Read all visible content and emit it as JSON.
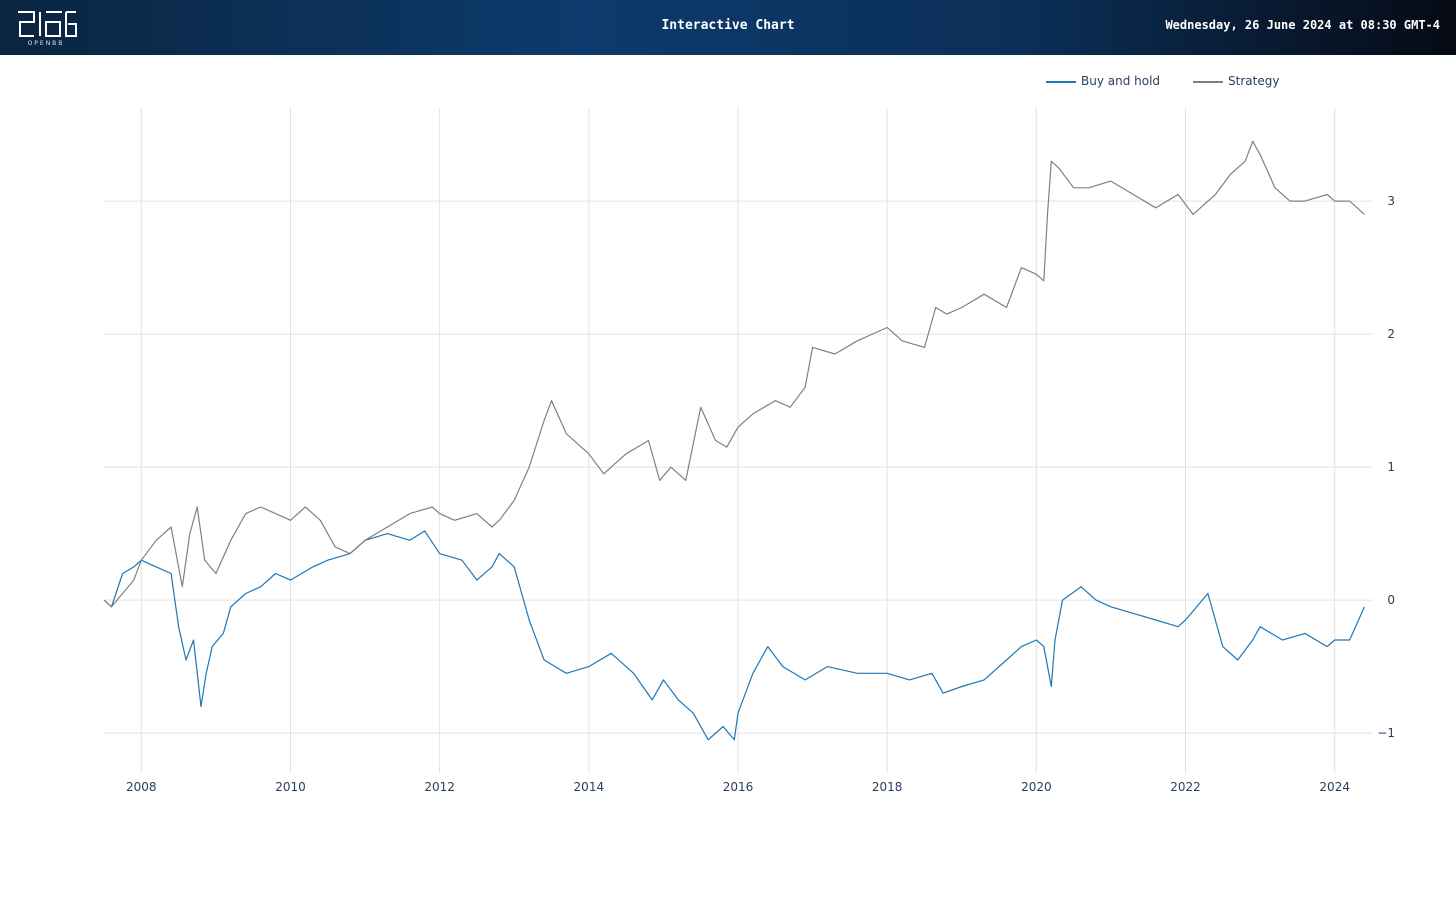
{
  "header": {
    "title": "Interactive Chart",
    "datetime": "Wednesday, 26 June 2024 at 08:30 GMT-4",
    "logo_caption": "OPENBB",
    "colors": {
      "from": "#0a2540",
      "mid": "#0d3a6c",
      "to": "#060a14"
    }
  },
  "legend": {
    "items": [
      {
        "label": "Buy and hold",
        "color": "#1f77b4"
      },
      {
        "label": "Strategy",
        "color": "#808080"
      }
    ]
  },
  "chart_data": {
    "type": "line",
    "x_range": [
      2007.5,
      2024.5
    ],
    "ylim": [
      -1.3,
      3.7
    ],
    "x_ticks": [
      2008,
      2010,
      2012,
      2014,
      2016,
      2018,
      2020,
      2022,
      2024
    ],
    "y_ticks": [
      -1,
      0,
      1,
      2,
      3
    ],
    "y_tick_labels": [
      "−1",
      "0",
      "1",
      "2",
      "3"
    ],
    "grid": true,
    "legend_position": "top-right",
    "series": [
      {
        "name": "Buy and hold",
        "color": "#1f77b4",
        "x": [
          2007.5,
          2007.6,
          2007.75,
          2007.9,
          2008.0,
          2008.2,
          2008.4,
          2008.5,
          2008.6,
          2008.7,
          2008.8,
          2008.87,
          2008.95,
          2009.1,
          2009.2,
          2009.4,
          2009.6,
          2009.8,
          2010.0,
          2010.3,
          2010.5,
          2010.8,
          2011.0,
          2011.3,
          2011.6,
          2011.8,
          2012.0,
          2012.3,
          2012.5,
          2012.7,
          2012.8,
          2013.0,
          2013.2,
          2013.4,
          2013.7,
          2014.0,
          2014.3,
          2014.6,
          2014.85,
          2015.0,
          2015.2,
          2015.4,
          2015.6,
          2015.8,
          2015.95,
          2016.0,
          2016.2,
          2016.4,
          2016.6,
          2016.9,
          2017.2,
          2017.6,
          2018.0,
          2018.3,
          2018.6,
          2018.75,
          2019.0,
          2019.3,
          2019.6,
          2019.8,
          2020.0,
          2020.1,
          2020.2,
          2020.25,
          2020.35,
          2020.6,
          2020.8,
          2021.0,
          2021.3,
          2021.6,
          2021.9,
          2022.0,
          2022.3,
          2022.5,
          2022.7,
          2022.9,
          2023.0,
          2023.3,
          2023.6,
          2023.9,
          2024.0,
          2024.2,
          2024.4
        ],
        "y": [
          0.0,
          -0.05,
          0.2,
          0.25,
          0.3,
          0.25,
          0.2,
          -0.2,
          -0.45,
          -0.3,
          -0.8,
          -0.55,
          -0.35,
          -0.25,
          -0.05,
          0.05,
          0.1,
          0.2,
          0.15,
          0.25,
          0.3,
          0.35,
          0.45,
          0.5,
          0.45,
          0.52,
          0.35,
          0.3,
          0.15,
          0.25,
          0.35,
          0.25,
          -0.15,
          -0.45,
          -0.55,
          -0.5,
          -0.4,
          -0.55,
          -0.75,
          -0.6,
          -0.75,
          -0.85,
          -1.05,
          -0.95,
          -1.05,
          -0.85,
          -0.55,
          -0.35,
          -0.5,
          -0.6,
          -0.5,
          -0.55,
          -0.55,
          -0.6,
          -0.55,
          -0.7,
          -0.65,
          -0.6,
          -0.45,
          -0.35,
          -0.3,
          -0.35,
          -0.65,
          -0.3,
          0.0,
          0.1,
          0.0,
          -0.05,
          -0.1,
          -0.15,
          -0.2,
          -0.15,
          0.05,
          -0.35,
          -0.45,
          -0.3,
          -0.2,
          -0.3,
          -0.25,
          -0.35,
          -0.3,
          -0.3,
          -0.05
        ]
      },
      {
        "name": "Strategy",
        "color": "#808080",
        "x": [
          2007.5,
          2007.6,
          2007.75,
          2007.9,
          2008.0,
          2008.2,
          2008.4,
          2008.55,
          2008.65,
          2008.75,
          2008.85,
          2009.0,
          2009.2,
          2009.4,
          2009.6,
          2009.8,
          2010.0,
          2010.2,
          2010.4,
          2010.6,
          2010.8,
          2011.0,
          2011.3,
          2011.6,
          2011.9,
          2012.0,
          2012.2,
          2012.5,
          2012.7,
          2012.8,
          2013.0,
          2013.2,
          2013.4,
          2013.5,
          2013.7,
          2014.0,
          2014.2,
          2014.5,
          2014.8,
          2014.95,
          2015.1,
          2015.3,
          2015.5,
          2015.7,
          2015.85,
          2016.0,
          2016.2,
          2016.5,
          2016.7,
          2016.9,
          2017.0,
          2017.3,
          2017.6,
          2018.0,
          2018.2,
          2018.5,
          2018.65,
          2018.8,
          2019.0,
          2019.3,
          2019.6,
          2019.8,
          2020.0,
          2020.1,
          2020.15,
          2020.2,
          2020.3,
          2020.5,
          2020.7,
          2021.0,
          2021.3,
          2021.6,
          2021.9,
          2022.1,
          2022.4,
          2022.6,
          2022.8,
          2022.9,
          2023.0,
          2023.2,
          2023.4,
          2023.6,
          2023.9,
          2024.0,
          2024.2,
          2024.4
        ],
        "y": [
          0.0,
          -0.05,
          0.05,
          0.15,
          0.3,
          0.45,
          0.55,
          0.1,
          0.5,
          0.7,
          0.3,
          0.2,
          0.45,
          0.65,
          0.7,
          0.65,
          0.6,
          0.7,
          0.6,
          0.4,
          0.35,
          0.45,
          0.55,
          0.65,
          0.7,
          0.65,
          0.6,
          0.65,
          0.55,
          0.6,
          0.75,
          1.0,
          1.35,
          1.5,
          1.25,
          1.1,
          0.95,
          1.1,
          1.2,
          0.9,
          1.0,
          0.9,
          1.45,
          1.2,
          1.15,
          1.3,
          1.4,
          1.5,
          1.45,
          1.6,
          1.9,
          1.85,
          1.95,
          2.05,
          1.95,
          1.9,
          2.2,
          2.15,
          2.2,
          2.3,
          2.2,
          2.5,
          2.45,
          2.4,
          2.9,
          3.3,
          3.25,
          3.1,
          3.1,
          3.15,
          3.05,
          2.95,
          3.05,
          2.9,
          3.05,
          3.2,
          3.3,
          3.45,
          3.35,
          3.1,
          3.0,
          3.0,
          3.05,
          3.0,
          3.0,
          2.9
        ]
      }
    ]
  }
}
